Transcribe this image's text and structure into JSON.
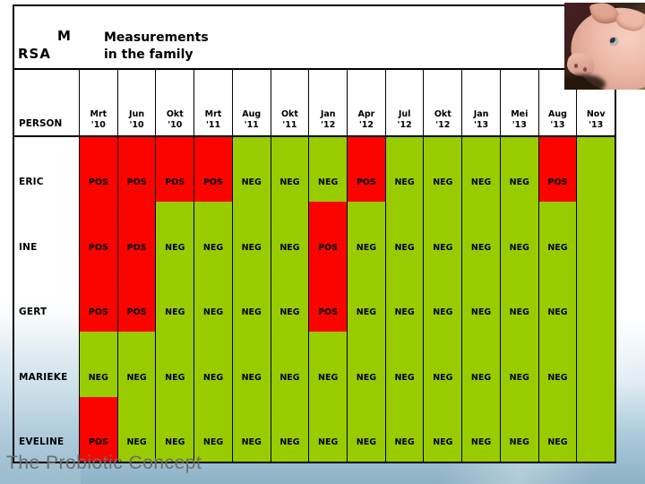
{
  "slide": {
    "corner_label_line1": "M",
    "corner_label_line2": "RSA",
    "title_line1": "Measurements",
    "title_line2": "in the family",
    "footer_text": "The Probiotic Concept"
  },
  "chart_data": {
    "type": "heatmap",
    "title": "MRSA Measurements in the family",
    "row_header": "PERSON",
    "columns": [
      "Mrt '10",
      "Jun '10",
      "Okt '10",
      "Mrt '11",
      "Aug '11",
      "Okt '11",
      "Jan '12",
      "Apr '12",
      "Jul '12",
      "Okt '12",
      "Jan '13",
      "Mei '13",
      "Aug '13",
      "Nov '13"
    ],
    "rows": [
      {
        "name": "ERIC",
        "values": [
          "POS",
          "POS",
          "POS",
          "POS",
          "NEG",
          "NEG",
          "NEG",
          "POS",
          "NEG",
          "NEG",
          "NEG",
          "NEG",
          "POS",
          ""
        ]
      },
      {
        "name": "INE",
        "values": [
          "POS",
          "POS",
          "NEG",
          "NEG",
          "NEG",
          "NEG",
          "POS",
          "NEG",
          "NEG",
          "NEG",
          "NEG",
          "NEG",
          "NEG",
          ""
        ]
      },
      {
        "name": "GERT",
        "values": [
          "POS",
          "POS",
          "NEG",
          "NEG",
          "NEG",
          "NEG",
          "POS",
          "NEG",
          "NEG",
          "NEG",
          "NEG",
          "NEG",
          "NEG",
          ""
        ]
      },
      {
        "name": "MARIEKE",
        "values": [
          "NEG",
          "NEG",
          "NEG",
          "NEG",
          "NEG",
          "NEG",
          "NEG",
          "NEG",
          "NEG",
          "NEG",
          "NEG",
          "NEG",
          "NEG",
          ""
        ]
      },
      {
        "name": "EVELINE",
        "values": [
          "POS",
          "NEG",
          "NEG",
          "NEG",
          "NEG",
          "NEG",
          "NEG",
          "NEG",
          "NEG",
          "NEG",
          "NEG",
          "NEG",
          "NEG",
          ""
        ]
      }
    ],
    "value_colors": {
      "POS": "#fb0400",
      "NEG": "#99cc00",
      "": "#99cc00"
    },
    "legend_position": "none",
    "grid_color": "#000000",
    "layout_note": "each person row is a color band with bottom-aligned text"
  }
}
